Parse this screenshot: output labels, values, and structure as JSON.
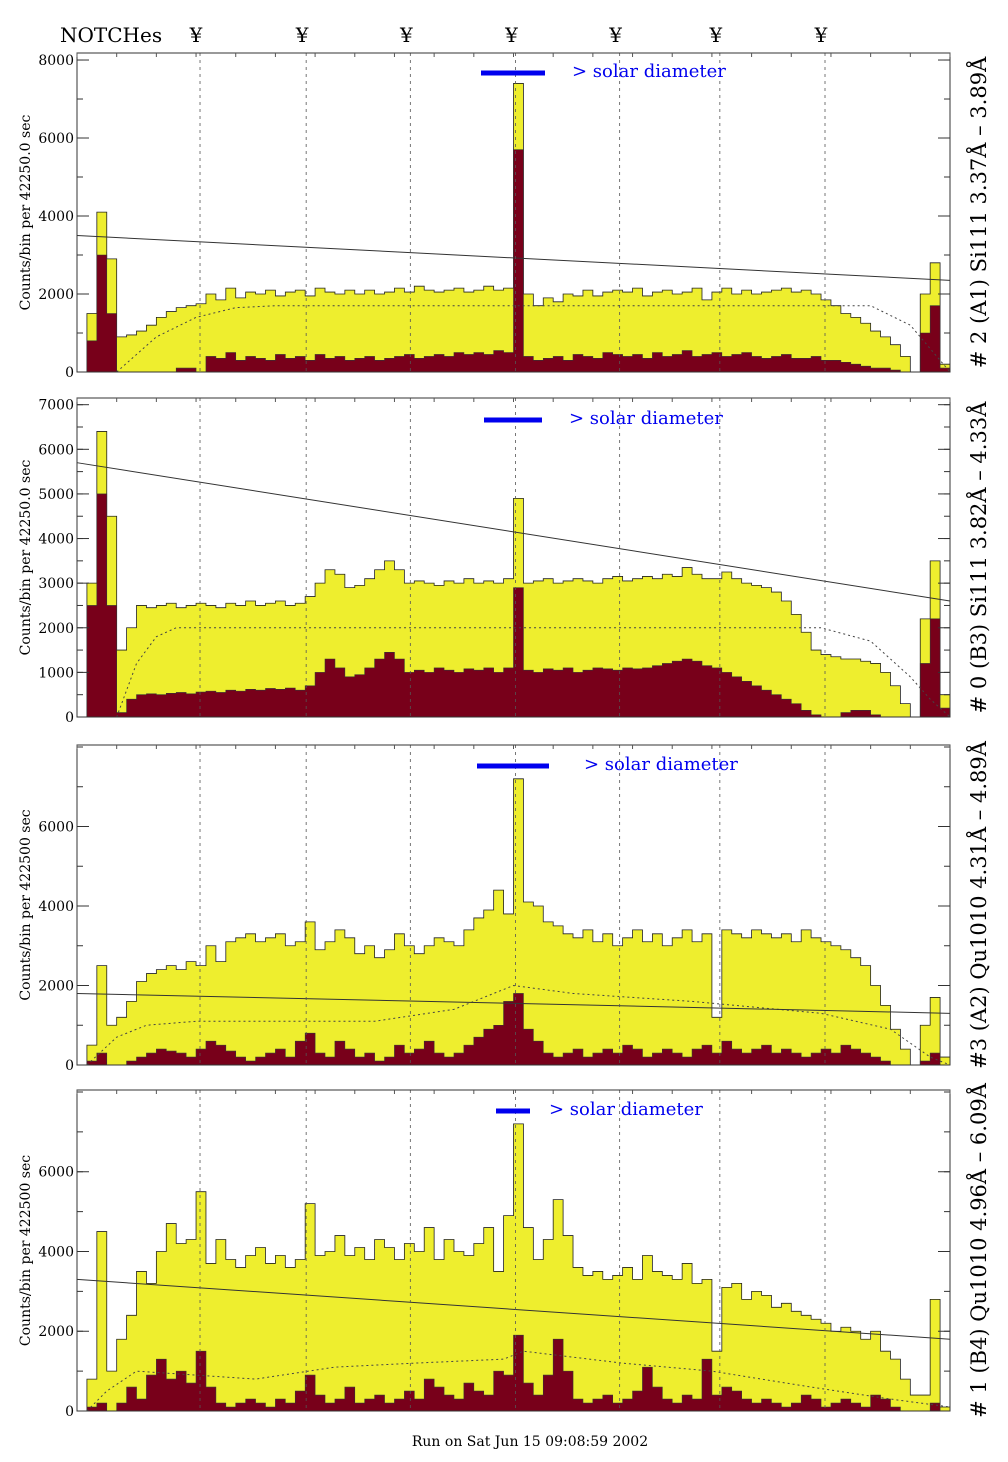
{
  "header": {
    "notches_label": "NOTCHes",
    "notch_symbol": "¥"
  },
  "footer": {
    "run_text": "Run on Sat Jun 15 09:08:59 2002"
  },
  "colors": {
    "total": "#eeee2e",
    "partial": "#78001a",
    "solar_bar": "#0000ee",
    "grid": "#555555"
  },
  "chart_data": [
    {
      "type": "bar",
      "title": "# 2 (A1) Si111  3.37Å – 3.89Å",
      "ylabel": "Counts/bin per  42250.0 sec",
      "legend": "> solar diameter",
      "ylim": [
        0,
        8180
      ],
      "yticks": [
        0,
        2000,
        4000,
        6000,
        8000
      ],
      "minor_step": 1000,
      "notches": [
        12.4,
        23.1,
        33.6,
        44.2,
        54.7,
        64.8,
        75.4
      ],
      "total": [
        0,
        1500,
        4100,
        2900,
        900,
        950,
        1050,
        1200,
        1400,
        1550,
        1650,
        1700,
        1750,
        2000,
        1850,
        2150,
        1900,
        2050,
        2000,
        2100,
        1950,
        2050,
        2100,
        1950,
        2150,
        2050,
        2000,
        2100,
        2000,
        2100,
        2000,
        2050,
        2150,
        2050,
        2200,
        2100,
        2050,
        2100,
        2150,
        2050,
        2100,
        2200,
        2100,
        2150,
        7400,
        2000,
        1700,
        1900,
        1800,
        2000,
        1950,
        2100,
        1950,
        2050,
        2100,
        2050,
        2150,
        1950,
        2050,
        2100,
        2000,
        2050,
        2150,
        1850,
        2050,
        2150,
        2000,
        2100,
        2000,
        2050,
        2100,
        2150,
        2050,
        2100,
        2000,
        1850,
        1700,
        1500,
        1400,
        1250,
        1050,
        900,
        700,
        400,
        0,
        2000,
        2800,
        200
      ],
      "partial": [
        0,
        800,
        3000,
        1500,
        0,
        0,
        0,
        0,
        0,
        0,
        100,
        100,
        0,
        400,
        350,
        500,
        300,
        400,
        350,
        300,
        450,
        350,
        400,
        300,
        450,
        350,
        400,
        300,
        350,
        400,
        300,
        350,
        400,
        450,
        350,
        400,
        450,
        400,
        500,
        450,
        500,
        450,
        550,
        500,
        5700,
        400,
        300,
        350,
        400,
        300,
        450,
        400,
        350,
        500,
        450,
        400,
        450,
        350,
        500,
        400,
        450,
        550,
        400,
        450,
        500,
        400,
        450,
        500,
        400,
        350,
        400,
        450,
        350,
        350,
        400,
        300,
        300,
        250,
        200,
        150,
        100,
        100,
        50,
        0,
        0,
        1000,
        1700,
        100
      ],
      "dashed_curve": [
        [
          4,
          0
        ],
        [
          8,
          900
        ],
        [
          12,
          1400
        ],
        [
          16,
          1650
        ],
        [
          20,
          1700
        ],
        [
          80,
          1700
        ],
        [
          84,
          1200
        ],
        [
          86,
          600
        ],
        [
          88,
          0
        ]
      ],
      "trend_line": [
        [
          0,
          3500
        ],
        [
          88,
          2350
        ]
      ]
    },
    {
      "type": "bar",
      "title": "# 0 (B3) Si111  3.82Å – 4.33Å",
      "ylabel": "Counts/bin per  42250.0 sec",
      "legend": "> solar diameter",
      "ylim": [
        0,
        7150
      ],
      "yticks": [
        0,
        1000,
        2000,
        3000,
        4000,
        5000,
        6000,
        7000
      ],
      "minor_step": 500,
      "notches": [
        12.4,
        23.1,
        33.6,
        44.2,
        54.7,
        64.8,
        75.4
      ],
      "total": [
        0,
        3000,
        6400,
        4500,
        1500,
        2000,
        2500,
        2450,
        2500,
        2550,
        2450,
        2500,
        2550,
        2500,
        2450,
        2550,
        2500,
        2600,
        2500,
        2550,
        2600,
        2500,
        2550,
        2700,
        3000,
        3300,
        3200,
        2900,
        2950,
        3100,
        3300,
        3500,
        3300,
        3000,
        3050,
        3000,
        2950,
        3050,
        3000,
        3100,
        3000,
        3050,
        3000,
        3100,
        4900,
        3000,
        3050,
        3100,
        3000,
        3050,
        3100,
        3050,
        3000,
        3100,
        3150,
        3050,
        3100,
        3150,
        3100,
        3200,
        3150,
        3350,
        3200,
        3100,
        3100,
        3250,
        3100,
        3000,
        2950,
        2900,
        2800,
        2600,
        2300,
        1900,
        1500,
        1400,
        1350,
        1300,
        1300,
        1250,
        1200,
        1000,
        700,
        300,
        0,
        2200,
        3500,
        500
      ],
      "partial": [
        0,
        2500,
        5000,
        2500,
        100,
        400,
        500,
        520,
        500,
        530,
        550,
        520,
        560,
        580,
        550,
        600,
        580,
        620,
        600,
        640,
        620,
        650,
        600,
        700,
        1000,
        1300,
        1100,
        900,
        950,
        1100,
        1300,
        1450,
        1300,
        1000,
        1050,
        1000,
        1100,
        1050,
        1000,
        1080,
        1050,
        1100,
        1000,
        1100,
        2900,
        1050,
        1000,
        1080,
        1050,
        1100,
        1000,
        1050,
        1100,
        1080,
        1050,
        1100,
        1080,
        1100,
        1150,
        1200,
        1250,
        1300,
        1250,
        1150,
        1100,
        1000,
        900,
        800,
        700,
        600,
        500,
        400,
        300,
        150,
        50,
        0,
        0,
        100,
        150,
        150,
        50,
        0,
        0,
        0,
        0,
        1200,
        2200,
        200
      ],
      "dashed_curve": [
        [
          4,
          0
        ],
        [
          6,
          1200
        ],
        [
          8,
          1800
        ],
        [
          10,
          2000
        ],
        [
          75,
          2000
        ],
        [
          80,
          1700
        ],
        [
          84,
          900
        ],
        [
          86,
          400
        ],
        [
          88,
          0
        ]
      ],
      "trend_line": [
        [
          0,
          5700
        ],
        [
          88,
          2600
        ]
      ]
    },
    {
      "type": "bar",
      "title": "#3 (A2) Qu1010  4.31Å – 4.89Å",
      "ylabel": "Counts/bin per  422500 sec",
      "legend": "> solar diameter",
      "ylim": [
        0,
        8050
      ],
      "yticks": [
        0,
        2000,
        4000,
        6000
      ],
      "minor_step": 1000,
      "notches": [
        12.4,
        23.1,
        33.6,
        44.2,
        54.7,
        64.8,
        75.4
      ],
      "total": [
        0,
        500,
        2500,
        1000,
        1200,
        1600,
        2100,
        2300,
        2400,
        2500,
        2400,
        2600,
        2500,
        3000,
        2600,
        3100,
        3200,
        3300,
        3100,
        3200,
        3300,
        3000,
        3100,
        3600,
        2900,
        3100,
        3400,
        3200,
        2800,
        3000,
        2700,
        2900,
        3300,
        3000,
        2800,
        3000,
        3200,
        3100,
        3000,
        3400,
        3700,
        3900,
        4400,
        3800,
        7200,
        4100,
        4000,
        3600,
        3500,
        3300,
        3200,
        3400,
        3100,
        3300,
        3000,
        3200,
        3400,
        3100,
        3300,
        3000,
        3200,
        3400,
        3100,
        3300,
        1200,
        3400,
        3300,
        3200,
        3400,
        3300,
        3200,
        3300,
        3100,
        3400,
        3200,
        3100,
        3000,
        2900,
        2700,
        2500,
        2000,
        1500,
        900,
        400,
        0,
        1000,
        1700,
        200
      ],
      "partial": [
        0,
        100,
        300,
        0,
        0,
        100,
        200,
        300,
        400,
        350,
        300,
        200,
        400,
        600,
        500,
        350,
        200,
        100,
        200,
        300,
        400,
        200,
        600,
        800,
        300,
        200,
        600,
        400,
        200,
        300,
        100,
        200,
        500,
        300,
        400,
        600,
        300,
        200,
        300,
        500,
        700,
        900,
        1000,
        1600,
        1800,
        900,
        600,
        300,
        200,
        300,
        400,
        200,
        300,
        400,
        300,
        500,
        400,
        200,
        300,
        400,
        300,
        200,
        400,
        500,
        300,
        600,
        400,
        300,
        400,
        500,
        300,
        400,
        300,
        200,
        300,
        400,
        300,
        500,
        400,
        300,
        200,
        100,
        0,
        0,
        0,
        100,
        300,
        0
      ],
      "dashed_curve": [
        [
          1,
          0
        ],
        [
          4,
          700
        ],
        [
          7,
          1000
        ],
        [
          12,
          1100
        ],
        [
          30,
          1100
        ],
        [
          38,
          1400
        ],
        [
          44,
          2000
        ],
        [
          50,
          1800
        ],
        [
          62,
          1600
        ],
        [
          75,
          1300
        ],
        [
          82,
          900
        ],
        [
          86,
          200
        ],
        [
          88,
          0
        ]
      ],
      "trend_line": [
        [
          0,
          1800
        ],
        [
          88,
          1300
        ]
      ]
    },
    {
      "type": "bar",
      "title": "# 1 (B4) Qu1010 4.96Å – 6.09Å",
      "ylabel": "Counts/bin per  422500 sec",
      "legend": "> solar diameter",
      "ylim": [
        0,
        8050
      ],
      "yticks": [
        0,
        2000,
        4000,
        6000
      ],
      "minor_step": 1000,
      "notches": [
        12.4,
        23.1,
        33.6,
        44.2,
        54.7,
        64.8,
        75.4
      ],
      "total": [
        0,
        800,
        4500,
        1000,
        1800,
        2400,
        3500,
        3200,
        4000,
        4700,
        4200,
        4300,
        5500,
        3700,
        4300,
        3800,
        3600,
        3900,
        4100,
        3700,
        3900,
        3600,
        3800,
        5200,
        3900,
        4000,
        4400,
        3900,
        4100,
        3800,
        4300,
        4100,
        3800,
        4200,
        4000,
        4600,
        3800,
        4300,
        4000,
        3900,
        4200,
        4600,
        3500,
        4900,
        7200,
        4600,
        3800,
        4300,
        5300,
        4400,
        3600,
        3400,
        3500,
        3300,
        3400,
        3600,
        3300,
        3900,
        3500,
        3400,
        3300,
        3700,
        3200,
        3300,
        1500,
        3100,
        3200,
        2800,
        3000,
        2900,
        2600,
        2700,
        2500,
        2400,
        2300,
        2200,
        2000,
        2100,
        2000,
        1800,
        2000,
        1500,
        1300,
        800,
        400,
        400,
        2800,
        100
      ],
      "partial": [
        0,
        100,
        200,
        0,
        200,
        600,
        300,
        900,
        1300,
        800,
        1000,
        700,
        1500,
        600,
        200,
        100,
        200,
        300,
        200,
        100,
        300,
        200,
        500,
        900,
        400,
        200,
        300,
        600,
        200,
        300,
        400,
        200,
        300,
        500,
        300,
        800,
        600,
        400,
        300,
        700,
        500,
        400,
        1000,
        900,
        1900,
        700,
        400,
        900,
        1800,
        1000,
        300,
        200,
        300,
        400,
        200,
        300,
        500,
        1100,
        600,
        300,
        200,
        400,
        300,
        1300,
        400,
        600,
        500,
        300,
        200,
        300,
        200,
        100,
        200,
        400,
        300,
        100,
        200,
        300,
        200,
        100,
        400,
        300,
        100,
        0,
        0,
        0,
        200,
        0
      ],
      "dashed_curve": [
        [
          1,
          0
        ],
        [
          3,
          500
        ],
        [
          6,
          1000
        ],
        [
          12,
          900
        ],
        [
          18,
          800
        ],
        [
          26,
          1100
        ],
        [
          34,
          1200
        ],
        [
          43,
          1300
        ],
        [
          45,
          1500
        ],
        [
          55,
          1200
        ],
        [
          64,
          1000
        ],
        [
          74,
          600
        ],
        [
          82,
          300
        ],
        [
          88,
          100
        ]
      ],
      "trend_line": [
        [
          0,
          3300
        ],
        [
          88,
          1800
        ]
      ]
    }
  ]
}
